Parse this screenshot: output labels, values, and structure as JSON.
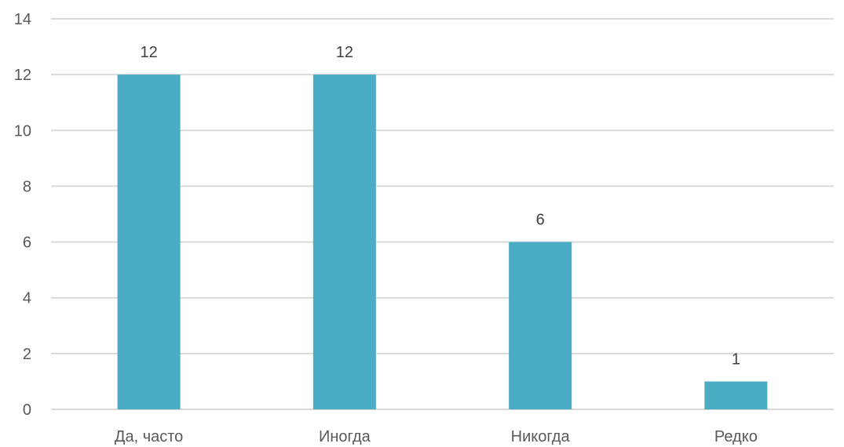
{
  "chart_data": {
    "type": "bar",
    "categories": [
      "Да, часто",
      "Иногда",
      "Никогда",
      "Редко"
    ],
    "values": [
      12,
      12,
      6,
      1
    ],
    "ylim": [
      0,
      14
    ],
    "yticks": [
      "0",
      "2",
      "4",
      "6",
      "8",
      "10",
      "12",
      "14"
    ],
    "data_labels": [
      "12",
      "12",
      "6",
      "1"
    ],
    "grid": true,
    "legend": "none",
    "bar_color": "#4BACC6",
    "grid_color": "#D9D9D9"
  }
}
